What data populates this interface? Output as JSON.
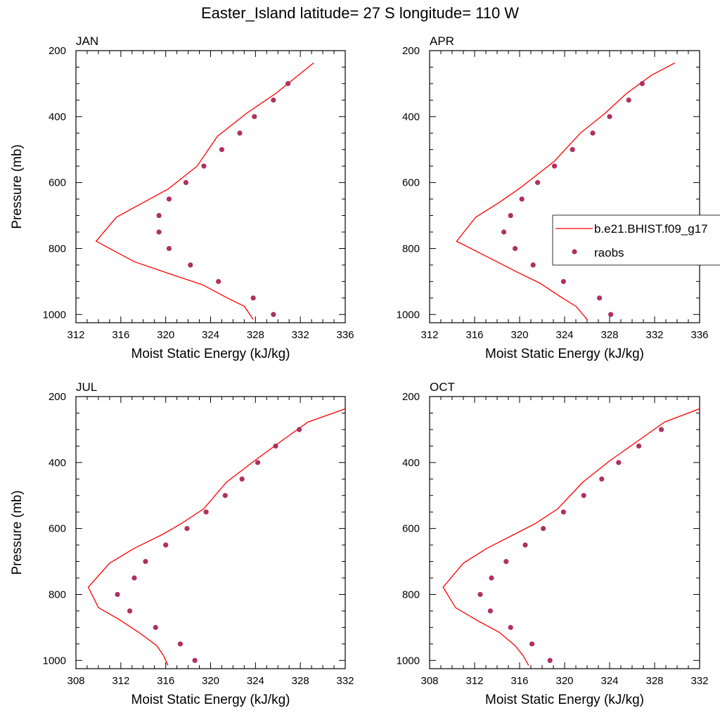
{
  "title": "Easter_Island  latitude= 27 S longitude= 110 W",
  "colors": {
    "model_line": "#ff0000",
    "raobs_marker": "#b03060",
    "axis": "#000000"
  },
  "chart_data": [
    {
      "type": "line",
      "panel": "JAN",
      "xlabel": "Moist Static Energy (kJ/kg)",
      "ylabel": "Pressure (mb)",
      "xlim": [
        312,
        336
      ],
      "ylim": [
        1025,
        200
      ],
      "xticks": [
        312,
        316,
        320,
        324,
        328,
        332,
        336
      ],
      "yticks": [
        200,
        400,
        600,
        800,
        1000
      ],
      "series": [
        {
          "name": "b.e21.BHIST.f09_g17",
          "style": "line",
          "x": [
            327.8,
            327.0,
            325.5,
            323.3,
            320.2,
            317.2,
            313.8,
            315.6,
            320.2,
            322.8,
            324.6,
            327.2,
            329.8,
            331.8,
            333.2
          ],
          "y": [
            1015,
            975,
            950,
            910,
            875,
            840,
            778,
            705,
            620,
            550,
            460,
            390,
            330,
            275,
            237
          ]
        },
        {
          "name": "raobs",
          "style": "marker",
          "x": [
            329.6,
            327.8,
            324.7,
            322.2,
            320.3,
            319.4,
            319.4,
            320.3,
            321.8,
            323.4,
            325.0,
            326.6,
            327.9,
            329.6,
            330.9
          ],
          "y": [
            1000,
            950,
            900,
            850,
            800,
            750,
            700,
            650,
            600,
            550,
            500,
            450,
            400,
            350,
            300
          ]
        }
      ]
    },
    {
      "type": "line",
      "panel": "APR",
      "xlabel": "Moist Static Energy (kJ/kg)",
      "ylabel": "",
      "xlim": [
        312,
        336
      ],
      "ylim": [
        1025,
        200
      ],
      "xticks": [
        312,
        316,
        320,
        324,
        328,
        332,
        336
      ],
      "yticks": [
        200,
        400,
        600,
        800,
        1000
      ],
      "legend": {
        "placement": "right",
        "entries": [
          "b.e21.BHIST.f09_g17",
          "raobs"
        ]
      },
      "series": [
        {
          "name": "b.e21.BHIST.f09_g17",
          "style": "line",
          "x": [
            326.0,
            325.0,
            323.8,
            321.8,
            319.7,
            317.7,
            314.4,
            316.1,
            318.2,
            320.1,
            323.1,
            325.4,
            327.6,
            329.5,
            331.7,
            333.8
          ],
          "y": [
            1015,
            975,
            950,
            905,
            870,
            835,
            778,
            705,
            660,
            615,
            535,
            450,
            390,
            330,
            275,
            237
          ]
        },
        {
          "name": "raobs",
          "style": "marker",
          "x": [
            328.1,
            327.1,
            323.9,
            321.2,
            319.6,
            318.6,
            319.2,
            320.2,
            321.6,
            323.1,
            324.7,
            326.5,
            328.0,
            329.7,
            330.9
          ],
          "y": [
            1000,
            950,
            900,
            850,
            800,
            750,
            700,
            650,
            600,
            550,
            500,
            450,
            400,
            350,
            300
          ]
        }
      ]
    },
    {
      "type": "line",
      "panel": "JUL",
      "xlabel": "Moist Static Energy (kJ/kg)",
      "ylabel": "Pressure (mb)",
      "xlim": [
        308,
        332
      ],
      "ylim": [
        1025,
        200
      ],
      "xticks": [
        308,
        312,
        316,
        320,
        324,
        328,
        332
      ],
      "yticks": [
        200,
        400,
        600,
        800,
        1000
      ],
      "series": [
        {
          "name": "b.e21.BHIST.f09_g17",
          "style": "line",
          "x": [
            316.2,
            315.8,
            315.2,
            313.6,
            311.8,
            310.0,
            309.1,
            311.0,
            313.2,
            315.6,
            317.4,
            319.4,
            321.4,
            323.9,
            326.5,
            328.7,
            332.0
          ],
          "y": [
            1015,
            985,
            955,
            915,
            875,
            840,
            778,
            705,
            660,
            620,
            585,
            540,
            460,
            395,
            330,
            277,
            237
          ]
        },
        {
          "name": "raobs",
          "style": "marker",
          "x": [
            318.6,
            317.3,
            315.1,
            312.8,
            311.7,
            313.2,
            314.2,
            316.0,
            317.9,
            319.6,
            321.3,
            322.8,
            324.2,
            325.8,
            327.9
          ],
          "y": [
            1000,
            950,
            900,
            850,
            800,
            750,
            700,
            650,
            600,
            550,
            500,
            450,
            400,
            350,
            300
          ]
        }
      ]
    },
    {
      "type": "line",
      "panel": "OCT",
      "xlabel": "Moist Static Energy (kJ/kg)",
      "ylabel": "",
      "xlim": [
        308,
        332
      ],
      "ylim": [
        1025,
        200
      ],
      "xticks": [
        308,
        312,
        316,
        320,
        324,
        328,
        332
      ],
      "yticks": [
        200,
        400,
        600,
        800,
        1000
      ],
      "series": [
        {
          "name": "b.e21.BHIST.f09_g17",
          "style": "line",
          "x": [
            316.8,
            316.3,
            315.6,
            314.2,
            312.3,
            310.3,
            309.2,
            311.0,
            313.1,
            315.4,
            317.4,
            319.4,
            321.6,
            324.0,
            326.7,
            328.9,
            332.0
          ],
          "y": [
            1015,
            985,
            955,
            915,
            880,
            840,
            778,
            705,
            660,
            620,
            585,
            540,
            460,
            395,
            330,
            277,
            237
          ]
        },
        {
          "name": "raobs",
          "style": "marker",
          "x": [
            318.7,
            317.1,
            315.2,
            313.4,
            312.5,
            313.5,
            314.8,
            316.5,
            318.1,
            319.9,
            321.7,
            323.3,
            324.8,
            326.6,
            328.6
          ],
          "y": [
            1000,
            950,
            900,
            850,
            800,
            750,
            700,
            650,
            600,
            550,
            500,
            450,
            400,
            350,
            300
          ]
        }
      ]
    }
  ]
}
